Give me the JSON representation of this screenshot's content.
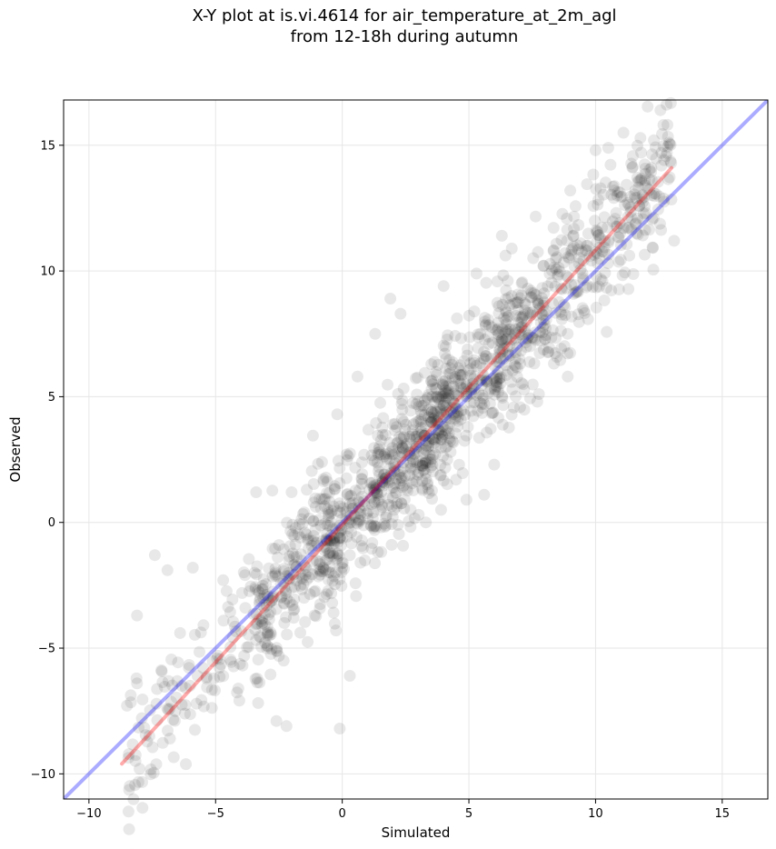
{
  "chart_data": {
    "type": "scatter",
    "title_line1": "X-Y plot at is.vi.4614 for air_temperature_at_2m_agl",
    "title_line2": "from 12-18h during autumn",
    "xlabel": "Simulated",
    "ylabel": "Observed",
    "xlim": [
      -11,
      16.8
    ],
    "ylim": [
      -11,
      16.8
    ],
    "x_ticks": [
      -10,
      -5,
      0,
      5,
      10,
      15
    ],
    "y_ticks": [
      -10,
      -5,
      0,
      5,
      10,
      15
    ],
    "x_tick_labels": [
      "−10",
      "−5",
      "0",
      "5",
      "10",
      "15"
    ],
    "y_tick_labels": [
      "−10",
      "−5",
      "0",
      "5",
      "10",
      "15"
    ],
    "grid": true,
    "point_color": "#000000",
    "point_opacity": 0.09,
    "identity_line": {
      "color": "#0000ff",
      "from": [
        -11,
        -11
      ],
      "to": [
        16.8,
        16.8
      ]
    },
    "regression_line": {
      "color": "#ff0000",
      "from": [
        -8.7,
        -9.6
      ],
      "to": [
        13.0,
        14.1
      ]
    },
    "points_sample": [
      [
        -8.1,
        -3.7
      ],
      [
        -7.4,
        -1.3
      ],
      [
        -6.9,
        -1.9
      ],
      [
        -5.9,
        -1.8
      ],
      [
        -8.0,
        -9.8
      ],
      [
        -8.1,
        -6.4
      ],
      [
        -6.4,
        -4.4
      ],
      [
        -4.7,
        -2.3
      ],
      [
        -3.4,
        1.2
      ],
      [
        -2.0,
        1.2
      ],
      [
        -1.4,
        1.3
      ],
      [
        -2.6,
        -7.9
      ],
      [
        -2.2,
        -8.1
      ],
      [
        -0.1,
        -8.2
      ],
      [
        0.3,
        -6.1
      ],
      [
        0.6,
        5.8
      ],
      [
        1.3,
        7.5
      ],
      [
        1.9,
        8.9
      ],
      [
        2.3,
        8.3
      ],
      [
        4.0,
        9.4
      ],
      [
        5.3,
        9.9
      ],
      [
        6.3,
        11.4
      ],
      [
        7.7,
        4.8
      ],
      [
        8.9,
        5.8
      ],
      [
        9.0,
        13.2
      ],
      [
        10.0,
        14.8
      ],
      [
        10.5,
        14.9
      ],
      [
        11.1,
        15.5
      ],
      [
        12.3,
        15.2
      ],
      [
        12.6,
        14.7
      ],
      [
        12.9,
        15.1
      ],
      [
        13.1,
        11.2
      ],
      [
        6.0,
        2.3
      ],
      [
        5.6,
        1.1
      ],
      [
        4.9,
        0.9
      ],
      [
        3.9,
        0.5
      ],
      [
        3.3,
        0.0
      ],
      [
        2.7,
        0.5
      ],
      [
        -0.2,
        4.3
      ],
      [
        -0.8,
        2.4
      ],
      [
        -1.5,
        0.4
      ],
      [
        -2.5,
        -0.9
      ]
    ]
  }
}
